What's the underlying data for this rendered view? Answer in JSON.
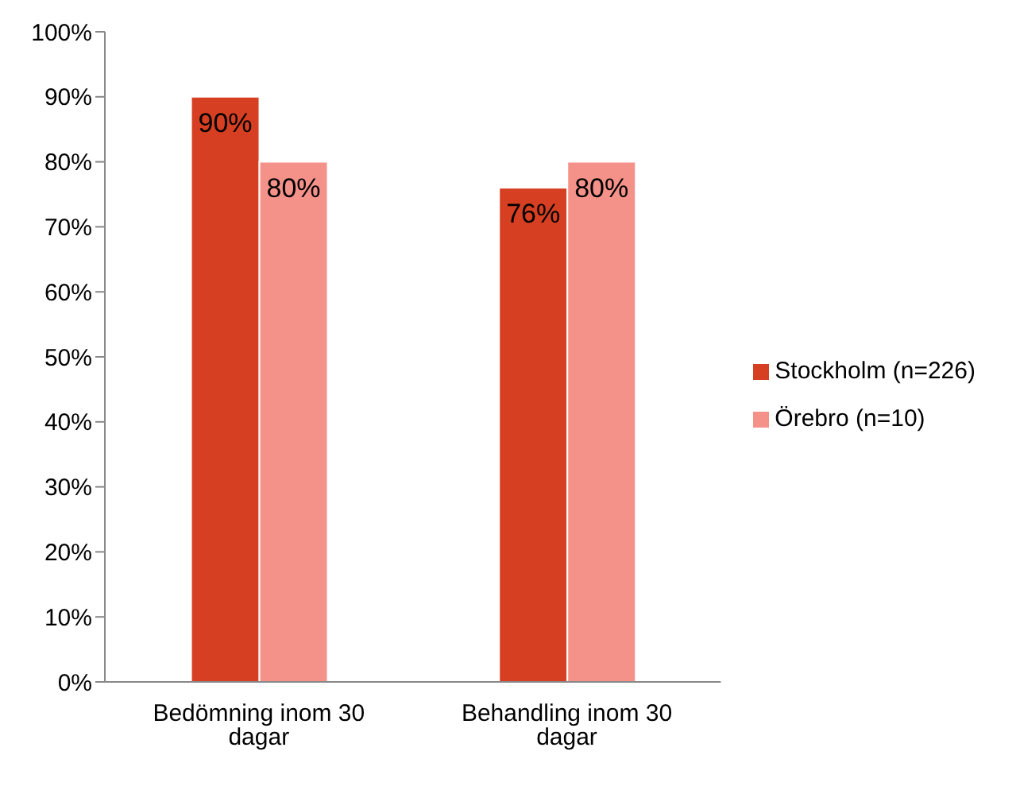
{
  "chart_data": {
    "type": "bar",
    "categories": [
      "Bedömning inom 30 dagar",
      "Behandling inom 30 dagar"
    ],
    "series": [
      {
        "name": "Stockholm (n=226)",
        "color": "#d63f22",
        "values": [
          90,
          76
        ],
        "value_labels": [
          "90%",
          "76%"
        ]
      },
      {
        "name": "Örebro (n=10)",
        "color": "#f4928a",
        "values": [
          80,
          80
        ],
        "value_labels": [
          "80%",
          "80%"
        ]
      }
    ],
    "ylim": [
      0,
      100
    ],
    "yticks": [
      {
        "value": 0,
        "label": "0%"
      },
      {
        "value": 10,
        "label": "10%"
      },
      {
        "value": 20,
        "label": "20%"
      },
      {
        "value": 30,
        "label": "30%"
      },
      {
        "value": 40,
        "label": "40%"
      },
      {
        "value": 50,
        "label": "50%"
      },
      {
        "value": 60,
        "label": "60%"
      },
      {
        "value": 70,
        "label": "70%"
      },
      {
        "value": 80,
        "label": "80%"
      },
      {
        "value": 90,
        "label": "90%"
      },
      {
        "value": 100,
        "label": "100%"
      }
    ],
    "grid": false,
    "legend": "right"
  }
}
